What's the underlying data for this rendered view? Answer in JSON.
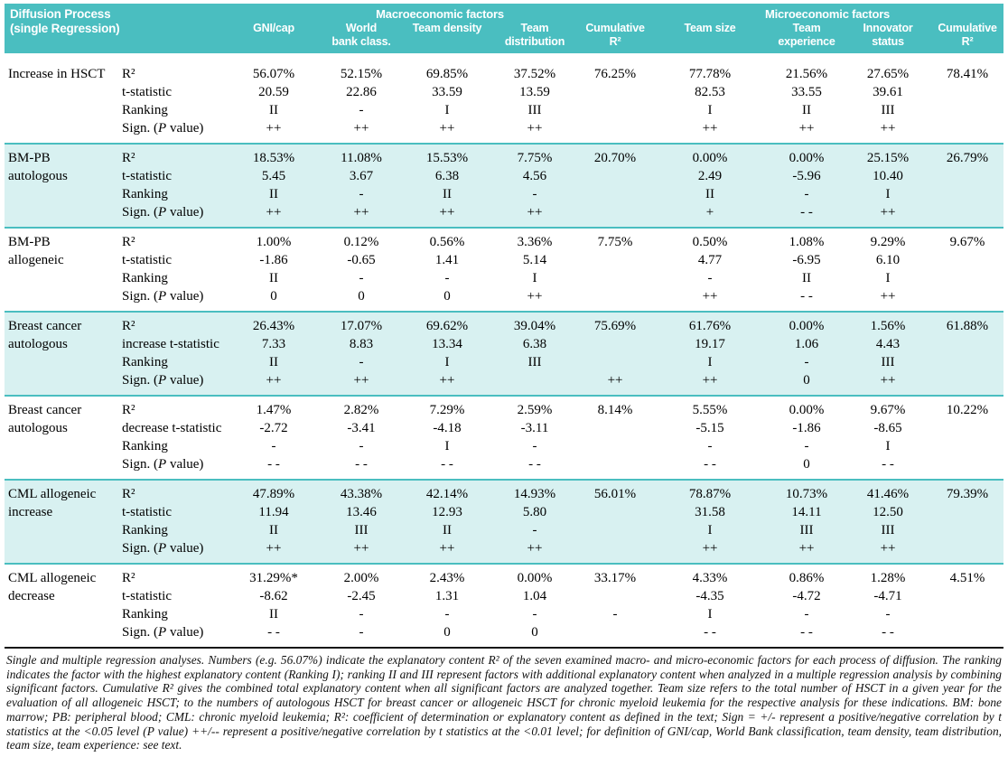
{
  "colors": {
    "header_teal": "#4ABEC0",
    "row_shade": "#D8F1F1",
    "separator_teal": "#4ABEC0",
    "bottom_rule": "#161616"
  },
  "header": {
    "title_lines": [
      "Diffusion Process",
      "(single Regression)"
    ],
    "macro_label": "Macroeconomic factors",
    "micro_label": "Microeconomic factors",
    "columns": [
      {
        "key": "gni-cap",
        "lines": [
          "GNI/cap"
        ]
      },
      {
        "key": "world-bank-class",
        "lines": [
          "World",
          "bank class."
        ]
      },
      {
        "key": "team-density",
        "lines": [
          "Team density"
        ]
      },
      {
        "key": "team-distribution",
        "lines": [
          "Team",
          "distribution"
        ]
      },
      {
        "key": "cumulative-r2-macro",
        "lines": [
          "Cumulative",
          "R²"
        ]
      },
      {
        "key": "team-size",
        "lines": [
          "Team size"
        ]
      },
      {
        "key": "team-experience",
        "lines": [
          "Team",
          "experience"
        ]
      },
      {
        "key": "innovator-status",
        "lines": [
          "Innovator",
          "status"
        ]
      },
      {
        "key": "cumulative-r2-micro",
        "lines": [
          "Cumulative",
          "R²"
        ]
      }
    ]
  },
  "groups": [
    {
      "key": "increase-in-hsct",
      "name_lines": [
        "Increase in HSCT"
      ],
      "shaded": false,
      "rows": [
        {
          "key": "r2",
          "label_segments": [
            {
              "t": "R²"
            }
          ],
          "cells": [
            "56.07%",
            "52.15%",
            "69.85%",
            "37.52%",
            "76.25%",
            "77.78%",
            "21.56%",
            "27.65%",
            "78.41%"
          ]
        },
        {
          "key": "t-statistic",
          "label_segments": [
            {
              "t": "t-statistic"
            }
          ],
          "cells": [
            "20.59",
            "22.86",
            "33.59",
            "13.59",
            "",
            "82.53",
            "33.55",
            "39.61",
            ""
          ]
        },
        {
          "key": "ranking",
          "label_segments": [
            {
              "t": "Ranking"
            }
          ],
          "cells": [
            "II",
            "-",
            "I",
            "III",
            "",
            "I",
            "II",
            "III",
            ""
          ]
        },
        {
          "key": "sign",
          "label_segments": [
            {
              "t": "Sign. ("
            },
            {
              "t": "P",
              "i": true
            },
            {
              "t": " value)"
            }
          ],
          "cells": [
            "++",
            "++",
            "++",
            "++",
            "",
            "++",
            "++",
            "++",
            ""
          ]
        }
      ]
    },
    {
      "key": "bm-pb-autologous",
      "name_lines": [
        "BM-PB",
        "autologous"
      ],
      "shaded": true,
      "rows": [
        {
          "key": "r2",
          "label_segments": [
            {
              "t": "R²"
            }
          ],
          "cells": [
            "18.53%",
            "11.08%",
            "15.53%",
            "7.75%",
            "20.70%",
            "0.00%",
            "0.00%",
            "25.15%",
            "26.79%"
          ]
        },
        {
          "key": "t-statistic",
          "label_segments": [
            {
              "t": "t-statistic"
            }
          ],
          "cells": [
            "5.45",
            "3.67",
            "6.38",
            "4.56",
            "",
            "2.49",
            "-5.96",
            "10.40",
            ""
          ]
        },
        {
          "key": "ranking",
          "label_segments": [
            {
              "t": "Ranking"
            }
          ],
          "cells": [
            "II",
            "-",
            "II",
            "-",
            "",
            "II",
            "-",
            "I",
            ""
          ]
        },
        {
          "key": "sign",
          "label_segments": [
            {
              "t": "Sign. ("
            },
            {
              "t": "P",
              "i": true
            },
            {
              "t": " value)"
            }
          ],
          "cells": [
            "++",
            "++",
            "++",
            "++",
            "",
            "+",
            "- -",
            "++",
            ""
          ]
        }
      ]
    },
    {
      "key": "bm-pb-allogeneic",
      "name_lines": [
        "BM-PB",
        "allogeneic"
      ],
      "shaded": false,
      "rows": [
        {
          "key": "r2",
          "label_segments": [
            {
              "t": "R²"
            }
          ],
          "cells": [
            "1.00%",
            "0.12%",
            "0.56%",
            "3.36%",
            "7.75%",
            "0.50%",
            "1.08%",
            "9.29%",
            "9.67%"
          ]
        },
        {
          "key": "t-statistic",
          "label_segments": [
            {
              "t": "t-statistic"
            }
          ],
          "cells": [
            "-1.86",
            "-0.65",
            "1.41",
            "5.14",
            "",
            "4.77",
            "-6.95",
            "6.10",
            ""
          ]
        },
        {
          "key": "ranking",
          "label_segments": [
            {
              "t": "Ranking"
            }
          ],
          "cells": [
            "II",
            "-",
            "-",
            "I",
            "",
            "-",
            "II",
            "I",
            ""
          ]
        },
        {
          "key": "sign",
          "label_segments": [
            {
              "t": "Sign. ("
            },
            {
              "t": "P",
              "i": true
            },
            {
              "t": " value)"
            }
          ],
          "cells": [
            "0",
            "0",
            "0",
            "++",
            "",
            "++",
            "- -",
            "++",
            ""
          ]
        }
      ]
    },
    {
      "key": "breast-cancer-autologous-increase",
      "name_lines": [
        "Breast cancer",
        "autologous"
      ],
      "shaded": true,
      "rows": [
        {
          "key": "r2",
          "label_segments": [
            {
              "t": "R²"
            }
          ],
          "cells": [
            "26.43%",
            "17.07%",
            "69.62%",
            "39.04%",
            "75.69%",
            "61.76%",
            "0.00%",
            "1.56%",
            "61.88%"
          ]
        },
        {
          "key": "t-statistic",
          "label_segments": [
            {
              "t": "increase t-statistic"
            }
          ],
          "cells": [
            "7.33",
            "8.83",
            "13.34",
            "6.38",
            "",
            "19.17",
            "1.06",
            "4.43",
            ""
          ]
        },
        {
          "key": "ranking",
          "label_segments": [
            {
              "t": "Ranking"
            }
          ],
          "cells": [
            "II",
            "-",
            "I",
            "III",
            "",
            "I",
            "-",
            "III",
            ""
          ]
        },
        {
          "key": "sign",
          "label_segments": [
            {
              "t": "Sign. ("
            },
            {
              "t": "P",
              "i": true
            },
            {
              "t": " value)"
            }
          ],
          "cells": [
            "++",
            "++",
            "++",
            "",
            "++",
            "++",
            "0",
            "++",
            ""
          ]
        }
      ]
    },
    {
      "key": "breast-cancer-autologous-decrease",
      "name_lines": [
        "Breast cancer",
        "autologous"
      ],
      "shaded": false,
      "rows": [
        {
          "key": "r2",
          "label_segments": [
            {
              "t": "R²"
            }
          ],
          "cells": [
            "1.47%",
            "2.82%",
            "7.29%",
            "2.59%",
            "8.14%",
            "5.55%",
            "0.00%",
            "9.67%",
            "10.22%"
          ]
        },
        {
          "key": "t-statistic",
          "label_segments": [
            {
              "t": "decrease t-statistic"
            }
          ],
          "cells": [
            "-2.72",
            "-3.41",
            "-4.18",
            "-3.11",
            "",
            "-5.15",
            "-1.86",
            "-8.65",
            ""
          ]
        },
        {
          "key": "ranking",
          "label_segments": [
            {
              "t": "Ranking"
            }
          ],
          "cells": [
            "-",
            "-",
            "I",
            "-",
            "",
            "-",
            "-",
            "I",
            ""
          ]
        },
        {
          "key": "sign",
          "label_segments": [
            {
              "t": "Sign. ("
            },
            {
              "t": "P",
              "i": true
            },
            {
              "t": " value)"
            }
          ],
          "cells": [
            "- -",
            "- -",
            "- -",
            "- -",
            "",
            "- -",
            "0",
            "- -",
            ""
          ]
        }
      ]
    },
    {
      "key": "cml-allogeneic-increase",
      "name_lines": [
        "CML allogeneic",
        "increase"
      ],
      "shaded": true,
      "rows": [
        {
          "key": "r2",
          "label_segments": [
            {
              "t": "R²"
            }
          ],
          "cells": [
            "47.89%",
            "43.38%",
            "42.14%",
            "14.93%",
            "56.01%",
            "78.87%",
            "10.73%",
            "41.46%",
            "79.39%"
          ]
        },
        {
          "key": "t-statistic",
          "label_segments": [
            {
              "t": "t-statistic"
            }
          ],
          "cells": [
            "11.94",
            "13.46",
            "12.93",
            "5.80",
            "",
            "31.58",
            "14.11",
            "12.50",
            ""
          ]
        },
        {
          "key": "ranking",
          "label_segments": [
            {
              "t": "Ranking"
            }
          ],
          "cells": [
            "II",
            "III",
            "II",
            "-",
            "",
            "I",
            "III",
            "III",
            ""
          ]
        },
        {
          "key": "sign",
          "label_segments": [
            {
              "t": "Sign. ("
            },
            {
              "t": "P",
              "i": true
            },
            {
              "t": " value)"
            }
          ],
          "cells": [
            "++",
            "++",
            "++",
            "++",
            "",
            "++",
            "++",
            "++",
            ""
          ]
        }
      ]
    },
    {
      "key": "cml-allogeneic-decrease",
      "name_lines": [
        "CML allogeneic",
        "decrease"
      ],
      "shaded": false,
      "rows": [
        {
          "key": "r2",
          "label_segments": [
            {
              "t": "R²"
            }
          ],
          "cells": [
            "31.29%*",
            "2.00%",
            "2.43%",
            "0.00%",
            "33.17%",
            "4.33%",
            "0.86%",
            "1.28%",
            "4.51%"
          ]
        },
        {
          "key": "t-statistic",
          "label_segments": [
            {
              "t": "t-statistic"
            }
          ],
          "cells": [
            "-8.62",
            "-2.45",
            "1.31",
            "1.04",
            "",
            "-4.35",
            "-4.72",
            "-4.71",
            ""
          ]
        },
        {
          "key": "ranking",
          "label_segments": [
            {
              "t": "Ranking"
            }
          ],
          "cells": [
            "II",
            "-",
            "-",
            "-",
            "-",
            "I",
            "-",
            "-",
            ""
          ]
        },
        {
          "key": "sign",
          "label_segments": [
            {
              "t": "Sign. ("
            },
            {
              "t": "P",
              "i": true
            },
            {
              "t": " value)"
            }
          ],
          "cells": [
            "- -",
            "-",
            "0",
            "0",
            "",
            "- -",
            "- -",
            "- -",
            ""
          ]
        }
      ]
    }
  ],
  "footnote": {
    "text": "Single and multiple regression analyses. Numbers (e.g. 56.07%) indicate the explanatory content R² of the seven examined macro- and micro-economic factors for each process of diffusion. The ranking indicates the factor with the highest explanatory content (Ranking I); ranking II and III represent factors with additional explanatory content when analyzed in a multiple regression analysis by combining significant factors. Cumulative R² gives the combined total explanatory content when all significant factors are analyzed together. Team size refers to the total number of HSCT in a given year for the evaluation of all allogeneic HSCT; to the numbers of autologous HSCT for breast cancer or allogeneic HSCT for chronic myeloid leukemia for the respective analysis for these indications. BM: bone marrow; PB: peripheral blood; CML: chronic myeloid leukemia; R²: coefficient of determination or explanatory content as defined in the text; Sign = +/- represent a positive/negative correlation by t statistics at the <0.05 level (P value) ++/-- represent a positive/negative correlation by t statistics at the <0.01 level; for definition of GNI/cap, World Bank classification, team density, team distribution, team size, team experience: see text."
  }
}
